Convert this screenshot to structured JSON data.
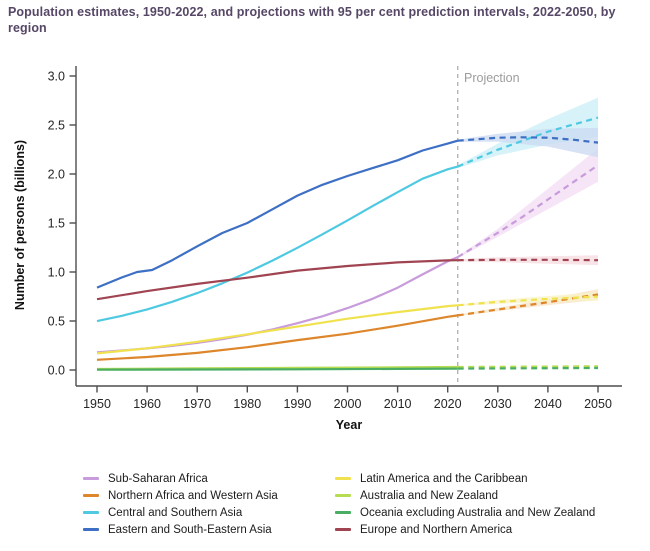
{
  "chart_data": {
    "type": "line",
    "title": "Population estimates, 1950-2022, and projections with 95 per cent prediction intervals, 2022-2050, by region",
    "xlabel": "Year",
    "ylabel": "Number of persons (billions)",
    "xlim": [
      1950,
      2050
    ],
    "ylim": [
      0.0,
      3.0
    ],
    "x_ticks": [
      1950,
      1960,
      1970,
      1980,
      1990,
      2000,
      2010,
      2020,
      2030,
      2040,
      2050
    ],
    "y_ticks": [
      0.0,
      0.5,
      1.0,
      1.5,
      2.0,
      2.5,
      3.0
    ],
    "grid": "off",
    "projection_start": 2022,
    "projection_label": "Projection",
    "series": [
      {
        "name": "Sub-Saharan Africa",
        "color": "#C89BDB",
        "band_color": "#F2DCF4",
        "estimates": [
          [
            1950,
            0.181
          ],
          [
            1955,
            0.199
          ],
          [
            1960,
            0.22
          ],
          [
            1965,
            0.246
          ],
          [
            1970,
            0.277
          ],
          [
            1975,
            0.314
          ],
          [
            1980,
            0.36
          ],
          [
            1985,
            0.414
          ],
          [
            1990,
            0.478
          ],
          [
            1995,
            0.548
          ],
          [
            2000,
            0.632
          ],
          [
            2005,
            0.727
          ],
          [
            2010,
            0.84
          ],
          [
            2015,
            0.975
          ],
          [
            2020,
            1.108
          ],
          [
            2022,
            1.152
          ]
        ],
        "projection": [
          [
            2022,
            1.152
          ],
          [
            2030,
            1.4
          ],
          [
            2035,
            1.565
          ],
          [
            2040,
            1.74
          ],
          [
            2045,
            1.915
          ],
          [
            2050,
            2.09
          ]
        ],
        "interval": [
          [
            2022,
            1.14,
            1.16
          ],
          [
            2030,
            1.36,
            1.44
          ],
          [
            2040,
            1.64,
            1.85
          ],
          [
            2050,
            1.92,
            2.26
          ]
        ]
      },
      {
        "name": "Northern Africa and Western Asia",
        "color": "#DD862B",
        "band_color": "#F7E3C6",
        "estimates": [
          [
            1950,
            0.104
          ],
          [
            1960,
            0.133
          ],
          [
            1970,
            0.174
          ],
          [
            1980,
            0.233
          ],
          [
            1990,
            0.305
          ],
          [
            2000,
            0.37
          ],
          [
            2010,
            0.452
          ],
          [
            2020,
            0.543
          ],
          [
            2022,
            0.557
          ]
        ],
        "projection": [
          [
            2022,
            0.557
          ],
          [
            2030,
            0.617
          ],
          [
            2040,
            0.692
          ],
          [
            2050,
            0.771
          ]
        ],
        "interval": [
          [
            2022,
            0.55,
            0.565
          ],
          [
            2030,
            0.6,
            0.635
          ],
          [
            2040,
            0.66,
            0.725
          ],
          [
            2050,
            0.715,
            0.825
          ]
        ]
      },
      {
        "name": "Central and Southern Asia",
        "color": "#4EC9E1",
        "band_color": "#C9EFF7",
        "estimates": [
          [
            1950,
            0.499
          ],
          [
            1955,
            0.553
          ],
          [
            1960,
            0.618
          ],
          [
            1965,
            0.696
          ],
          [
            1970,
            0.785
          ],
          [
            1975,
            0.885
          ],
          [
            1980,
            0.994
          ],
          [
            1985,
            1.116
          ],
          [
            1990,
            1.247
          ],
          [
            1995,
            1.385
          ],
          [
            2000,
            1.527
          ],
          [
            2005,
            1.672
          ],
          [
            2010,
            1.814
          ],
          [
            2015,
            1.952
          ],
          [
            2020,
            2.048
          ],
          [
            2022,
            2.075
          ]
        ],
        "projection": [
          [
            2022,
            2.075
          ],
          [
            2030,
            2.248
          ],
          [
            2040,
            2.432
          ],
          [
            2050,
            2.575
          ]
        ],
        "interval": [
          [
            2022,
            2.06,
            2.09
          ],
          [
            2030,
            2.19,
            2.31
          ],
          [
            2040,
            2.3,
            2.56
          ],
          [
            2050,
            2.38,
            2.78
          ]
        ]
      },
      {
        "name": "Eastern and South-Eastern Asia",
        "color": "#3D6FC4",
        "band_color": "#C9D9F2",
        "estimates": [
          [
            1950,
            0.841
          ],
          [
            1955,
            0.945
          ],
          [
            1958,
            1.0
          ],
          [
            1961,
            1.02
          ],
          [
            1965,
            1.12
          ],
          [
            1970,
            1.262
          ],
          [
            1975,
            1.398
          ],
          [
            1980,
            1.5
          ],
          [
            1985,
            1.64
          ],
          [
            1990,
            1.78
          ],
          [
            1995,
            1.89
          ],
          [
            2000,
            1.98
          ],
          [
            2005,
            2.06
          ],
          [
            2010,
            2.14
          ],
          [
            2015,
            2.24
          ],
          [
            2020,
            2.31
          ],
          [
            2022,
            2.34
          ]
        ],
        "projection": [
          [
            2022,
            2.34
          ],
          [
            2030,
            2.37
          ],
          [
            2035,
            2.375
          ],
          [
            2040,
            2.37
          ],
          [
            2045,
            2.35
          ],
          [
            2050,
            2.32
          ]
        ],
        "interval": [
          [
            2022,
            2.33,
            2.35
          ],
          [
            2030,
            2.33,
            2.41
          ],
          [
            2040,
            2.28,
            2.46
          ],
          [
            2050,
            2.17,
            2.47
          ]
        ]
      },
      {
        "name": "Latin America and the Caribbean",
        "color": "#F0E24F",
        "band_color": "#F8F3C5",
        "estimates": [
          [
            1950,
            0.169
          ],
          [
            1960,
            0.221
          ],
          [
            1970,
            0.288
          ],
          [
            1980,
            0.364
          ],
          [
            1990,
            0.443
          ],
          [
            2000,
            0.523
          ],
          [
            2010,
            0.591
          ],
          [
            2020,
            0.652
          ],
          [
            2022,
            0.66
          ]
        ],
        "projection": [
          [
            2022,
            0.66
          ],
          [
            2030,
            0.695
          ],
          [
            2040,
            0.726
          ],
          [
            2050,
            0.749
          ]
        ],
        "interval": [
          [
            2022,
            0.652,
            0.668
          ],
          [
            2030,
            0.675,
            0.715
          ],
          [
            2040,
            0.695,
            0.755
          ],
          [
            2050,
            0.705,
            0.795
          ]
        ]
      },
      {
        "name": "Australia and New Zealand",
        "color": "#B6DC52",
        "band_color": "#EAF6CF",
        "estimates": [
          [
            1950,
            0.01
          ],
          [
            1970,
            0.016
          ],
          [
            1990,
            0.021
          ],
          [
            2010,
            0.027
          ],
          [
            2022,
            0.031
          ]
        ],
        "projection": [
          [
            2022,
            0.031
          ],
          [
            2050,
            0.038
          ]
        ],
        "interval": []
      },
      {
        "name": "Oceania excluding Australia and New Zealand",
        "color": "#49AE63",
        "band_color": "#D6EEDD",
        "estimates": [
          [
            1950,
            0.003
          ],
          [
            1970,
            0.005
          ],
          [
            1990,
            0.007
          ],
          [
            2010,
            0.011
          ],
          [
            2022,
            0.014
          ]
        ],
        "projection": [
          [
            2022,
            0.014
          ],
          [
            2050,
            0.02
          ]
        ],
        "interval": []
      },
      {
        "name": "Europe and Northern America",
        "color": "#A04452",
        "band_color": "#F6D9DE",
        "estimates": [
          [
            1950,
            0.722
          ],
          [
            1960,
            0.805
          ],
          [
            1970,
            0.879
          ],
          [
            1980,
            0.942
          ],
          [
            1990,
            1.014
          ],
          [
            2000,
            1.061
          ],
          [
            2010,
            1.098
          ],
          [
            2020,
            1.118
          ],
          [
            2022,
            1.12
          ]
        ],
        "projection": [
          [
            2022,
            1.12
          ],
          [
            2030,
            1.125
          ],
          [
            2040,
            1.125
          ],
          [
            2050,
            1.12
          ]
        ],
        "interval": [
          [
            2022,
            1.11,
            1.13
          ],
          [
            2030,
            1.1,
            1.15
          ],
          [
            2040,
            1.085,
            1.16
          ],
          [
            2050,
            1.07,
            1.17
          ]
        ]
      }
    ]
  },
  "legend": {
    "columns": [
      [
        "Sub-Saharan Africa",
        "Northern Africa and Western Asia",
        "Central and Southern Asia",
        "Eastern and South-Eastern Asia"
      ],
      [
        "Latin America and the Caribbean",
        "Australia and New Zealand",
        "Oceania excluding Australia and New Zealand",
        "Europe and Northern America"
      ]
    ]
  }
}
